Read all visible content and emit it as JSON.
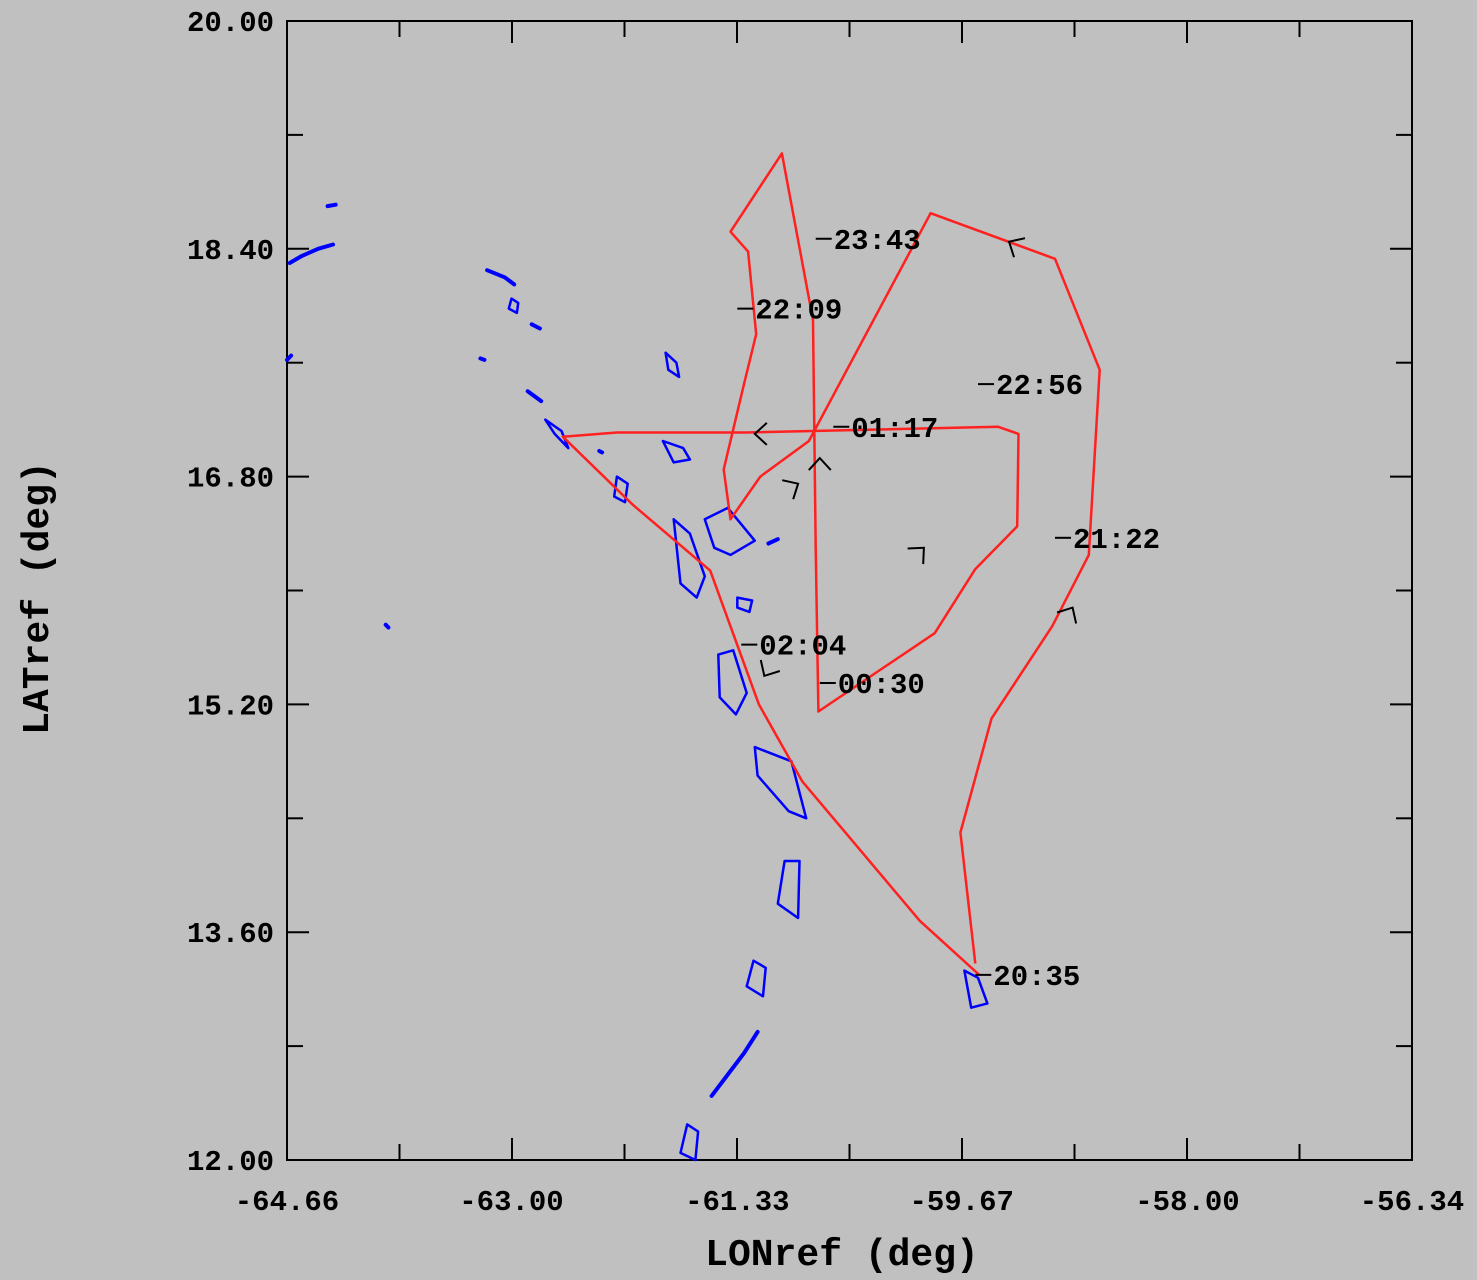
{
  "chart_data": {
    "type": "map",
    "xlabel": "LONref (deg)",
    "ylabel": "LATref (deg)",
    "xlim": [
      -64.66,
      -56.34
    ],
    "ylim": [
      12.0,
      20.0
    ],
    "x_ticks": [
      -64.66,
      -63.0,
      -61.33,
      -59.67,
      -58.0,
      -56.34
    ],
    "x_tick_labels": [
      "-64.66",
      "-63.00",
      "-61.33",
      "-59.67",
      "-58.00",
      "-56.34"
    ],
    "y_ticks": [
      12.0,
      13.6,
      15.2,
      16.8,
      18.4,
      20.0
    ],
    "y_tick_labels": [
      "12.00",
      "13.60",
      "15.20",
      "16.80",
      "18.40",
      "20.00"
    ],
    "grid": false,
    "colors": {
      "track": "#ff2020",
      "coast": "#0000ff",
      "background": "#c0c0c0",
      "axis": "#000000"
    },
    "flight_track": {
      "lon": [
        -59.54,
        -59.98,
        -60.85,
        -61.17,
        -61.53,
        -62.1,
        -62.62,
        -62.22,
        -61.27,
        -59.4,
        -59.25,
        -59.26,
        -59.57,
        -59.87,
        -60.73,
        -60.75,
        -60.77,
        -61.0,
        -61.38,
        -61.25,
        -61.19,
        -61.28,
        -61.43,
        -61.38,
        -61.16,
        -60.8,
        -59.9,
        -58.98,
        -58.65,
        -58.73,
        -59.0,
        -59.45,
        -59.68,
        -59.57
      ],
      "lat": [
        13.3,
        13.68,
        14.66,
        15.2,
        16.14,
        16.6,
        17.08,
        17.11,
        17.11,
        17.15,
        17.1,
        16.45,
        16.15,
        15.7,
        15.15,
        16.3,
        17.9,
        19.07,
        18.52,
        18.38,
        17.8,
        17.45,
        16.85,
        16.5,
        16.8,
        17.05,
        18.65,
        18.33,
        17.55,
        16.25,
        15.75,
        15.1,
        14.3,
        13.38
      ]
    },
    "time_labels": [
      {
        "text": "20:35",
        "lon": -59.57,
        "lat": 13.3
      },
      {
        "text": "21:22",
        "lon": -58.98,
        "lat": 16.37
      },
      {
        "text": "22:09",
        "lon": -61.33,
        "lat": 17.98
      },
      {
        "text": "22:56",
        "lon": -59.55,
        "lat": 17.45
      },
      {
        "text": "23:43",
        "lon": -60.75,
        "lat": 18.47
      },
      {
        "text": "00:30",
        "lon": -60.72,
        "lat": 15.35
      },
      {
        "text": "01:17",
        "lon": -60.62,
        "lat": 17.15
      },
      {
        "text": "02:04",
        "lon": -61.3,
        "lat": 15.62
      }
    ],
    "direction_arrows": [
      {
        "lon": -61.2,
        "lat": 17.1,
        "angle_deg": 180
      },
      {
        "lon": -59.95,
        "lat": 16.3,
        "angle_deg": 45
      },
      {
        "lon": -61.13,
        "lat": 15.4,
        "angle_deg": -120
      },
      {
        "lon": -60.88,
        "lat": 16.75,
        "angle_deg": 30
      },
      {
        "lon": -60.72,
        "lat": 16.93,
        "angle_deg": 90
      },
      {
        "lon": -59.32,
        "lat": 18.45,
        "angle_deg": 150
      },
      {
        "lon": -58.85,
        "lat": 15.88,
        "angle_deg": 60
      }
    ],
    "coastlines": [
      {
        "name": "puerto-rico-east",
        "closed": false,
        "lon": [
          -64.64,
          -64.55,
          -64.43,
          -64.32
        ],
        "lat": [
          18.3,
          18.35,
          18.4,
          18.43
        ]
      },
      {
        "name": "virgin-islands",
        "closed": false,
        "lon": [
          -64.36,
          -64.3
        ],
        "lat": [
          18.7,
          18.71
        ]
      },
      {
        "name": "puerto-rico-south",
        "closed": false,
        "lon": [
          -64.66,
          -64.63
        ],
        "lat": [
          17.62,
          17.65
        ]
      },
      {
        "name": "anguilla",
        "closed": false,
        "lon": [
          -63.18,
          -63.05,
          -62.98
        ],
        "lat": [
          18.25,
          18.2,
          18.15
        ]
      },
      {
        "name": "st-maarten",
        "closed": true,
        "lon": [
          -63.0,
          -62.95,
          -62.96,
          -63.02
        ],
        "lat": [
          18.05,
          18.02,
          17.95,
          17.98
        ]
      },
      {
        "name": "st-barts",
        "closed": false,
        "lon": [
          -62.85,
          -62.79
        ],
        "lat": [
          17.87,
          17.84
        ]
      },
      {
        "name": "saba",
        "closed": false,
        "lon": [
          -63.23,
          -63.2
        ],
        "lat": [
          17.63,
          17.62
        ]
      },
      {
        "name": "st-kitts",
        "closed": false,
        "lon": [
          -62.88,
          -62.78
        ],
        "lat": [
          17.4,
          17.33
        ]
      },
      {
        "name": "nevis",
        "closed": true,
        "lon": [
          -62.75,
          -62.63,
          -62.58,
          -62.68
        ],
        "lat": [
          17.2,
          17.12,
          17.0,
          17.1
        ]
      },
      {
        "name": "montserrat",
        "closed": true,
        "lon": [
          -62.22,
          -62.14,
          -62.16,
          -62.24
        ],
        "lat": [
          16.8,
          16.75,
          16.62,
          16.66
        ]
      },
      {
        "name": "barbuda",
        "closed": true,
        "lon": [
          -61.86,
          -61.78,
          -61.76,
          -61.84
        ],
        "lat": [
          17.67,
          17.6,
          17.5,
          17.55
        ]
      },
      {
        "name": "antigua",
        "closed": true,
        "lon": [
          -61.88,
          -61.73,
          -61.68,
          -61.8
        ],
        "lat": [
          17.05,
          17.0,
          16.92,
          16.9
        ]
      },
      {
        "name": "guadeloupe-basse-terre",
        "closed": true,
        "lon": [
          -61.8,
          -61.68,
          -61.57,
          -61.63,
          -61.75
        ],
        "lat": [
          16.5,
          16.4,
          16.1,
          15.95,
          16.05
        ]
      },
      {
        "name": "guadeloupe-grande-terre",
        "closed": true,
        "lon": [
          -61.57,
          -61.4,
          -61.2,
          -61.38,
          -61.5
        ],
        "lat": [
          16.5,
          16.58,
          16.35,
          16.25,
          16.3
        ]
      },
      {
        "name": "la-desirade",
        "closed": false,
        "lon": [
          -61.1,
          -61.03
        ],
        "lat": [
          16.33,
          16.36
        ]
      },
      {
        "name": "marie-galante",
        "closed": true,
        "lon": [
          -61.33,
          -61.22,
          -61.24,
          -61.33
        ],
        "lat": [
          15.95,
          15.93,
          15.85,
          15.88
        ]
      },
      {
        "name": "dominica",
        "closed": true,
        "lon": [
          -61.47,
          -61.36,
          -61.26,
          -61.34,
          -61.46
        ],
        "lat": [
          15.55,
          15.58,
          15.28,
          15.13,
          15.25
        ]
      },
      {
        "name": "martinique",
        "closed": true,
        "lon": [
          -61.2,
          -60.93,
          -60.82,
          -60.95,
          -61.18
        ],
        "lat": [
          14.9,
          14.8,
          14.4,
          14.45,
          14.7
        ]
      },
      {
        "name": "st-lucia",
        "closed": true,
        "lon": [
          -60.98,
          -60.87,
          -60.88,
          -61.03
        ],
        "lat": [
          14.1,
          14.1,
          13.7,
          13.8
        ]
      },
      {
        "name": "st-vincent",
        "closed": true,
        "lon": [
          -61.21,
          -61.12,
          -61.14,
          -61.26
        ],
        "lat": [
          13.4,
          13.35,
          13.15,
          13.22
        ]
      },
      {
        "name": "grenadines",
        "closed": false,
        "lon": [
          -61.18,
          -61.28,
          -61.4,
          -61.52
        ],
        "lat": [
          12.9,
          12.75,
          12.6,
          12.45
        ]
      },
      {
        "name": "grenada",
        "closed": true,
        "lon": [
          -61.7,
          -61.62,
          -61.64,
          -61.75
        ],
        "lat": [
          12.25,
          12.2,
          12.0,
          12.05
        ]
      },
      {
        "name": "barbados",
        "closed": true,
        "lon": [
          -59.65,
          -59.55,
          -59.48,
          -59.6
        ],
        "lat": [
          13.33,
          13.28,
          13.1,
          13.07
        ]
      },
      {
        "name": "islet-a",
        "closed": false,
        "lon": [
          -63.93,
          -63.91
        ],
        "lat": [
          15.76,
          15.74
        ]
      },
      {
        "name": "islet-b",
        "closed": false,
        "lon": [
          -62.35,
          -62.33
        ],
        "lat": [
          16.98,
          16.97
        ]
      }
    ]
  }
}
